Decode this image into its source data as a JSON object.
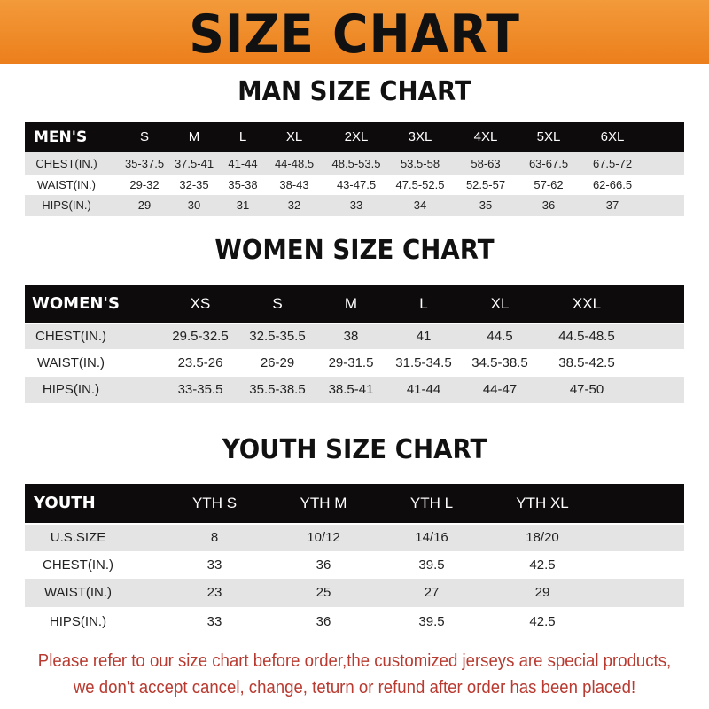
{
  "title": "SIZE CHART",
  "tables": [
    {
      "title": "MAN SIZE CHART",
      "header": [
        "MEN'S",
        "S",
        "M",
        "L",
        "XL",
        "2XL",
        "3XL",
        "4XL",
        "5XL",
        "6XL"
      ],
      "rows": [
        [
          "CHEST(IN.)",
          "35-37.5",
          "37.5-41",
          "41-44",
          "44-48.5",
          "48.5-53.5",
          "53.5-58",
          "58-63",
          "63-67.5",
          "67.5-72"
        ],
        [
          "WAIST(IN.)",
          "29-32",
          "32-35",
          "35-38",
          "38-43",
          "43-47.5",
          "47.5-52.5",
          "52.5-57",
          "57-62",
          "62-66.5"
        ],
        [
          "HIPS(IN.)",
          "29",
          "30",
          "31",
          "32",
          "33",
          "34",
          "35",
          "36",
          "37"
        ]
      ]
    },
    {
      "title": "WOMEN SIZE CHART",
      "header": [
        "WOMEN'S",
        "XS",
        "S",
        "M",
        "L",
        "XL",
        "XXL"
      ],
      "rows": [
        [
          "CHEST(IN.)",
          "29.5-32.5",
          "32.5-35.5",
          "38",
          "41",
          "44.5",
          "44.5-48.5"
        ],
        [
          "WAIST(IN.)",
          "23.5-26",
          "26-29",
          "29-31.5",
          "31.5-34.5",
          "34.5-38.5",
          "38.5-42.5"
        ],
        [
          "HIPS(IN.)",
          "33-35.5",
          "35.5-38.5",
          "38.5-41",
          "41-44",
          "44-47",
          "47-50"
        ]
      ]
    },
    {
      "title": "YOUTH SIZE CHART",
      "header": [
        "YOUTH",
        "YTH S",
        "YTH M",
        "YTH L",
        "YTH XL"
      ],
      "rows": [
        [
          "U.S.SIZE",
          "8",
          "10/12",
          "14/16",
          "18/20"
        ],
        [
          "CHEST(IN.)",
          "33",
          "36",
          "39.5",
          "42.5"
        ],
        [
          "WAIST(IN.)",
          "23",
          "25",
          "27",
          "29"
        ],
        [
          "HIPS(IN.)",
          "33",
          "36",
          "39.5",
          "42.5"
        ]
      ]
    }
  ],
  "notice": [
    "Please refer to our size chart before order,the customized jerseys are special products,",
    "we don't accept cancel, change, teturn or refund after order has been placed!"
  ],
  "colors": {
    "banner": "#ec7f1c",
    "header_row": "#0d0b0b",
    "stripe": "#e4e4e4",
    "notice": "#b83a30"
  }
}
